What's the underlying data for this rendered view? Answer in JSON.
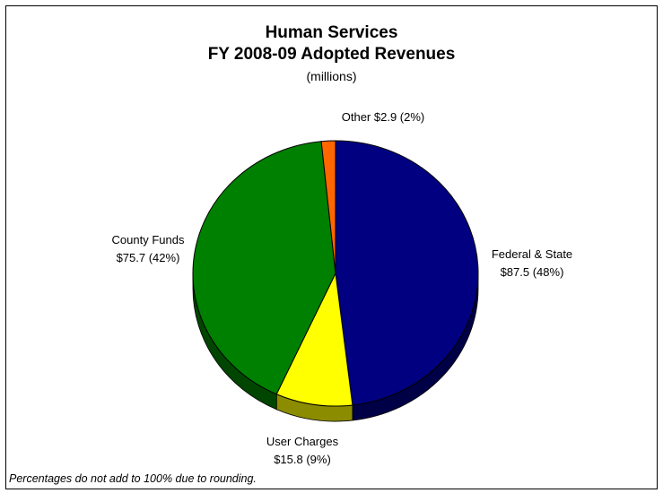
{
  "chart_data": {
    "type": "pie",
    "title": [
      "Human Services",
      "FY 2008-09 Adopted Revenues"
    ],
    "subtitle": "(millions)",
    "slices": [
      {
        "name": "Federal & State",
        "value": 87.5,
        "percent": 48,
        "color": "#000080",
        "label_lines": [
          "Federal & State",
          "$87.5 (48%)"
        ]
      },
      {
        "name": "User Charges",
        "value": 15.8,
        "percent": 9,
        "color": "#FFFF00",
        "label_lines": [
          "User Charges",
          "$15.8 (9%)"
        ]
      },
      {
        "name": "County Funds",
        "value": 75.7,
        "percent": 42,
        "color": "#008000",
        "label_lines": [
          "County Funds",
          "$75.7 (42%)"
        ]
      },
      {
        "name": "Other",
        "value": 2.9,
        "percent": 2,
        "color": "#FF6600",
        "label_lines": [
          "Other $2.9 (2%)"
        ]
      }
    ],
    "legend": "none",
    "footnote": "Percentages do not add to 100% due to rounding."
  }
}
